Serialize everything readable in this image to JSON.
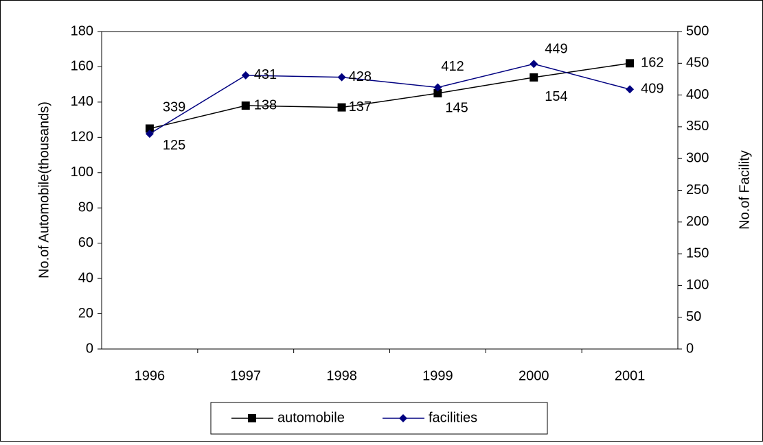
{
  "chart_data": {
    "type": "line",
    "categories": [
      "1996",
      "1997",
      "1998",
      "1999",
      "2000",
      "2001"
    ],
    "y_label": "No.of Automobile(thousands)",
    "y2_label": "No.of Facility",
    "ylim": [
      0,
      180
    ],
    "yticks": [
      0,
      20,
      40,
      60,
      80,
      100,
      120,
      140,
      160,
      180
    ],
    "y2lim": [
      0,
      500
    ],
    "y2ticks": [
      0,
      50,
      100,
      150,
      200,
      250,
      300,
      350,
      400,
      450,
      500
    ],
    "legend": "bottom",
    "series": [
      {
        "name": "automobile",
        "color": "#000000",
        "marker": "square",
        "values": [
          125,
          138,
          137,
          145,
          154,
          162
        ]
      },
      {
        "name": "facilities",
        "color": "#000080",
        "marker": "diamond",
        "axis": "y2",
        "values": [
          339,
          431,
          428,
          412,
          449,
          409
        ]
      }
    ]
  }
}
